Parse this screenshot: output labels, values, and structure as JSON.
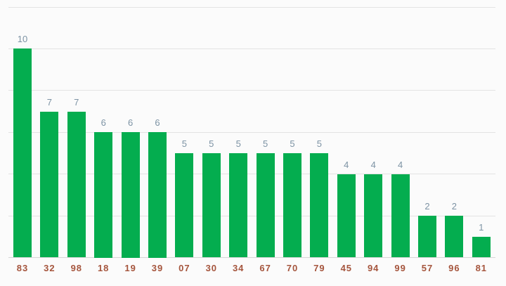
{
  "chart_data": {
    "type": "bar",
    "title": "",
    "xlabel": "",
    "ylabel": "",
    "categories": [
      "83",
      "32",
      "98",
      "18",
      "19",
      "39",
      "07",
      "30",
      "34",
      "67",
      "70",
      "79",
      "45",
      "94",
      "99",
      "57",
      "96",
      "81"
    ],
    "values": [
      10,
      7,
      7,
      6,
      6,
      6,
      5,
      5,
      5,
      5,
      5,
      5,
      4,
      4,
      4,
      2,
      2,
      1
    ],
    "annotations": [
      "10",
      "7",
      "7",
      "6",
      "6",
      "6",
      "5",
      "5",
      "5",
      "5",
      "5",
      "5",
      "4",
      "4",
      "4",
      "2",
      "2",
      "1"
    ],
    "ylim": [
      0,
      12
    ],
    "gridlines": [
      0,
      2,
      4,
      6,
      8,
      10,
      12
    ],
    "grid": "on",
    "legend": "none",
    "y_axis_labels_visible": false,
    "bar_color": "#04ad4f",
    "annotation_color": "#7d93a4",
    "axis_label_color": "#a5553d",
    "gridline_color": "#e3e3e3",
    "baseline_color": "#d6d6d6",
    "background": "#fbfbfb"
  }
}
